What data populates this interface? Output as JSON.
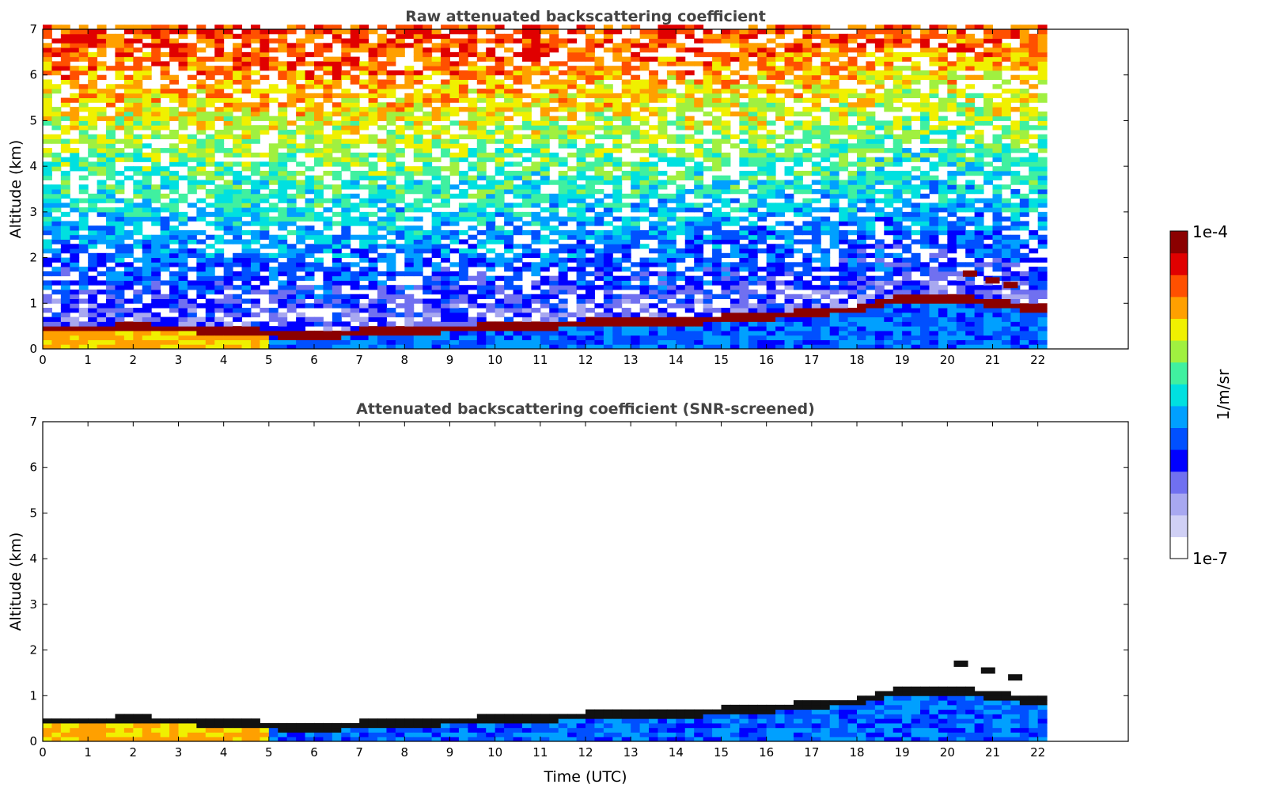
{
  "chart_data": [
    {
      "type": "heatmap",
      "title": "Raw attenuated backscattering coefficient",
      "xlabel": "",
      "ylabel": "Altitude (km)",
      "xlim": [
        0,
        24
      ],
      "ylim": [
        0,
        7
      ],
      "x_ticks": [
        "0",
        "1",
        "2",
        "3",
        "4",
        "5",
        "6",
        "7",
        "8",
        "9",
        "10",
        "11",
        "12",
        "13",
        "14",
        "15",
        "16",
        "17",
        "18",
        "19",
        "20",
        "21",
        "22"
      ],
      "y_ticks": [
        "0",
        "1",
        "2",
        "3",
        "4",
        "5",
        "6",
        "7"
      ],
      "data_end_time": 22.15,
      "screened": false,
      "layer_top_km": [
        [
          0,
          0.5
        ],
        [
          1,
          0.48
        ],
        [
          2,
          0.52
        ],
        [
          3,
          0.48
        ],
        [
          4,
          0.45
        ],
        [
          5,
          0.38
        ],
        [
          6,
          0.3
        ],
        [
          7,
          0.4
        ],
        [
          8,
          0.42
        ],
        [
          9,
          0.48
        ],
        [
          10,
          0.52
        ],
        [
          11,
          0.55
        ],
        [
          12,
          0.6
        ],
        [
          13,
          0.62
        ],
        [
          14,
          0.63
        ],
        [
          15,
          0.7
        ],
        [
          16,
          0.75
        ],
        [
          17,
          0.85
        ],
        [
          18,
          0.9
        ],
        [
          19,
          1.15
        ],
        [
          20,
          1.15
        ],
        [
          21,
          1.05
        ],
        [
          22,
          0.9
        ]
      ],
      "elevated_layer_km": [
        [
          20.5,
          1.65
        ],
        [
          21.0,
          1.5
        ],
        [
          21.4,
          1.4
        ]
      ]
    },
    {
      "type": "heatmap",
      "title": "Attenuated backscattering coefficient (SNR-screened)",
      "xlabel": "Time (UTC)",
      "ylabel": "Altitude (km)",
      "xlim": [
        0,
        24
      ],
      "ylim": [
        0,
        7
      ],
      "x_ticks": [
        "0",
        "1",
        "2",
        "3",
        "4",
        "5",
        "6",
        "7",
        "8",
        "9",
        "10",
        "11",
        "12",
        "13",
        "14",
        "15",
        "16",
        "17",
        "18",
        "19",
        "20",
        "21",
        "22"
      ],
      "y_ticks": [
        "0",
        "1",
        "2",
        "3",
        "4",
        "5",
        "6",
        "7"
      ],
      "data_end_time": 22.15,
      "screened": true,
      "layer_top_km": [
        [
          0,
          0.5
        ],
        [
          1,
          0.48
        ],
        [
          2,
          0.52
        ],
        [
          3,
          0.48
        ],
        [
          4,
          0.45
        ],
        [
          5,
          0.38
        ],
        [
          6,
          0.3
        ],
        [
          7,
          0.4
        ],
        [
          8,
          0.42
        ],
        [
          9,
          0.48
        ],
        [
          10,
          0.52
        ],
        [
          11,
          0.55
        ],
        [
          12,
          0.6
        ],
        [
          13,
          0.62
        ],
        [
          14,
          0.63
        ],
        [
          15,
          0.7
        ],
        [
          16,
          0.75
        ],
        [
          17,
          0.85
        ],
        [
          18,
          0.9
        ],
        [
          19,
          1.15
        ],
        [
          20,
          1.15
        ],
        [
          21,
          1.05
        ],
        [
          22,
          0.9
        ]
      ],
      "elevated_layer_km": [
        [
          20.3,
          1.7
        ],
        [
          20.9,
          1.55
        ],
        [
          21.5,
          1.4
        ]
      ]
    }
  ],
  "colorbar": {
    "max_label": "1e-4",
    "min_label": "1e-7",
    "unit_label": "1/m/sr",
    "colors": [
      "#ffffff",
      "#d0d0f5",
      "#a8a8f0",
      "#7070f0",
      "#0000ff",
      "#0050ff",
      "#00a0ff",
      "#00e0e0",
      "#40f0a0",
      "#a0f040",
      "#f0f000",
      "#ffa000",
      "#ff5000",
      "#e00000",
      "#8b0000"
    ]
  }
}
